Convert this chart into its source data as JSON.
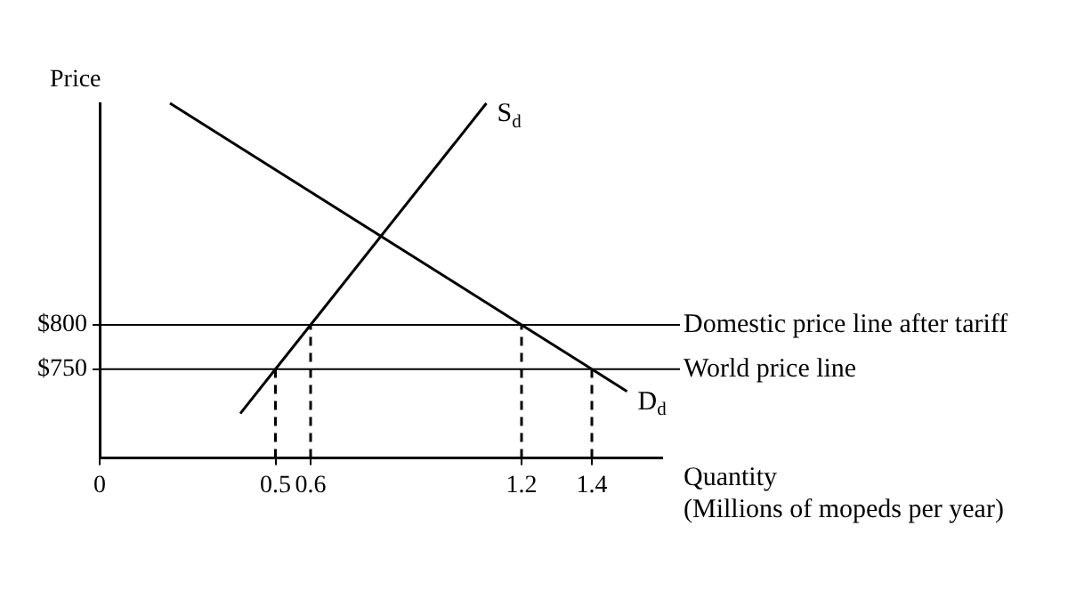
{
  "chart_data": {
    "type": "line",
    "xlabel": "Quantity\n(Millions of mopeds per year)",
    "ylabel": "Price",
    "xlim": [
      0,
      1.6
    ],
    "ylim": [
      650,
      1050
    ],
    "xticks": [
      0,
      0.5,
      0.6,
      1.2,
      1.4
    ],
    "yticks": [
      {
        "value": 750,
        "label": "$750"
      },
      {
        "value": 800,
        "label": "$800"
      }
    ],
    "grid": false,
    "legend": false,
    "marker": "none",
    "series": [
      {
        "x": [
          0.4,
          0.5,
          0.6,
          1.1
        ],
        "values": [
          700,
          750,
          800,
          1050
        ],
        "color": "#000000",
        "line_style": "solid"
      },
      {
        "x": [
          0.2,
          1.2,
          1.4,
          1.5
        ],
        "values": [
          1050,
          800,
          750,
          725
        ],
        "color": "#000000",
        "line_style": "solid"
      },
      {
        "x": [
          0.5,
          0.5
        ],
        "values": [
          650,
          750
        ],
        "color": "#000000",
        "line_style": "dashed"
      },
      {
        "x": [
          0.6,
          0.6
        ],
        "values": [
          650,
          800
        ],
        "color": "#000000",
        "line_style": "dashed"
      },
      {
        "x": [
          1.2,
          1.2
        ],
        "values": [
          650,
          800
        ],
        "color": "#000000",
        "line_style": "dashed"
      },
      {
        "x": [
          1.4,
          1.4
        ],
        "values": [
          650,
          750
        ],
        "color": "#000000",
        "line_style": "dashed"
      }
    ],
    "ref_lines": [
      {
        "axis": "y",
        "value": 800,
        "label": "Domestic price line after tariff",
        "color": "#000000"
      },
      {
        "axis": "y",
        "value": 750,
        "label": "World price line",
        "color": "#000000"
      }
    ],
    "annotations": [
      {
        "text": "S$_{d}$",
        "x": 1.1,
        "y": 1050
      },
      {
        "text": "D$_{d}$",
        "x": 1.5,
        "y": 725
      }
    ]
  }
}
